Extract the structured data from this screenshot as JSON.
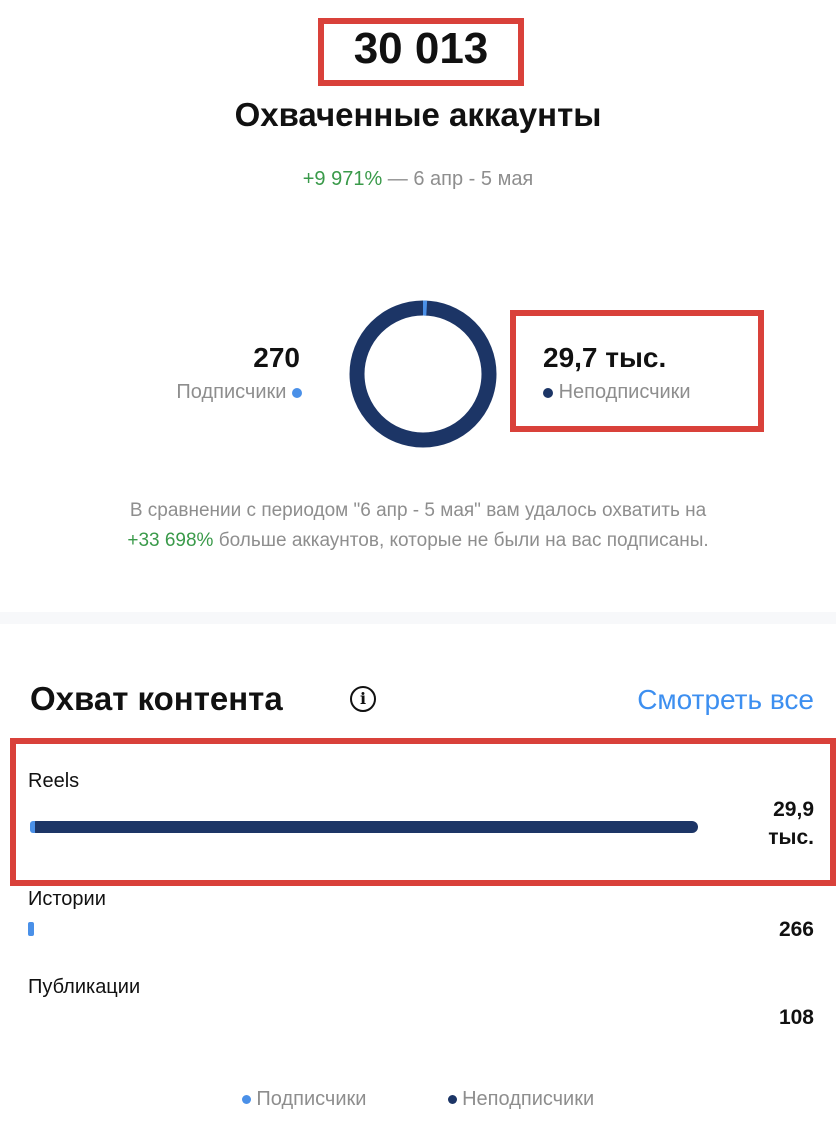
{
  "summary": {
    "total": "30 013",
    "title": "Охваченные аккаунты",
    "change": "+9 971%",
    "period": "— 6 апр - 5 мая"
  },
  "donut": {
    "followers_value": "270",
    "followers_label": "Подписчики",
    "nonfollowers_value": "29,7 тыс.",
    "nonfollowers_label": "Неподписчики",
    "followers_share": 0.009
  },
  "comparison": {
    "text_before": "В сравнении с периодом \"6 апр - 5 мая\" вам удалось охватить на",
    "highlight": "+33 698%",
    "text_after": "больше аккаунтов, которые не были на вас подписаны."
  },
  "content": {
    "title": "Охват контента",
    "see_all": "Смотреть все",
    "items": [
      {
        "label": "Reels",
        "value": "29,9 тыс.",
        "fraction": 1.0
      },
      {
        "label": "Истории",
        "value": "266",
        "fraction": 0.009
      },
      {
        "label": "Публикации",
        "value": "108",
        "fraction": 0
      }
    ]
  },
  "legend": {
    "followers": "Подписчики",
    "nonfollowers": "Неподписчики"
  },
  "colors": {
    "followers": "#4a90e8",
    "nonfollowers": "#1c3566",
    "link": "#3d8ff0",
    "highlight_box": "#d9413a",
    "positive": "#3a9a4a"
  }
}
